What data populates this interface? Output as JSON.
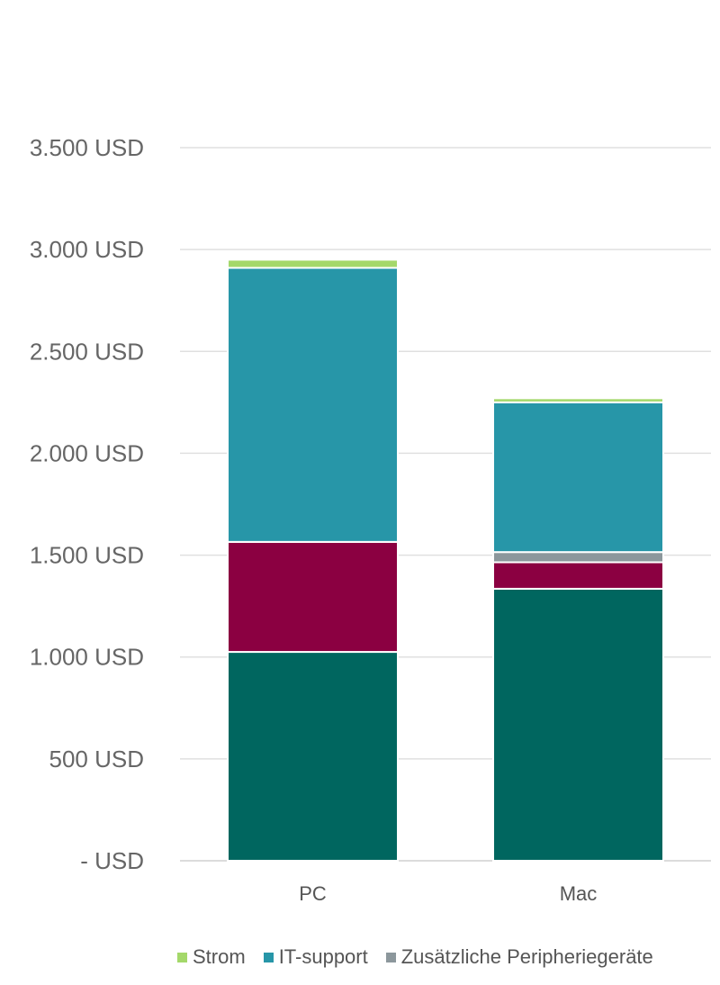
{
  "chart_data": {
    "type": "bar",
    "stacked": true,
    "categories": [
      "PC",
      "Mac"
    ],
    "series": [
      {
        "name": "",
        "color": "#00665f",
        "values": [
          1025,
          1335
        ]
      },
      {
        "name": "",
        "color": "#8b0041",
        "values": [
          540,
          130
        ]
      },
      {
        "name": "Zusätzliche Peripheriegeräte",
        "color": "#8c979c",
        "values": [
          0,
          50
        ]
      },
      {
        "name": "IT-support",
        "color": "#2796a8",
        "values": [
          1345,
          735
        ]
      },
      {
        "name": "Strom",
        "color": "#a4d86a",
        "values": [
          40,
          20
        ]
      }
    ],
    "legend_order": [
      4,
      3,
      2
    ],
    "y_axis": {
      "min": 0,
      "max": 3500,
      "ticks": [
        {
          "value": 0,
          "label": "-  USD"
        },
        {
          "value": 500,
          "label": "500 USD"
        },
        {
          "value": 1000,
          "label": "1.000 USD"
        },
        {
          "value": 1500,
          "label": "1.500 USD"
        },
        {
          "value": 2000,
          "label": "2.000 USD"
        },
        {
          "value": 2500,
          "label": "2.500 USD"
        },
        {
          "value": 3000,
          "label": "3.000 USD"
        },
        {
          "value": 3500,
          "label": "3.500   USD"
        }
      ]
    },
    "gridlines": true,
    "legend_position": "bottom"
  }
}
